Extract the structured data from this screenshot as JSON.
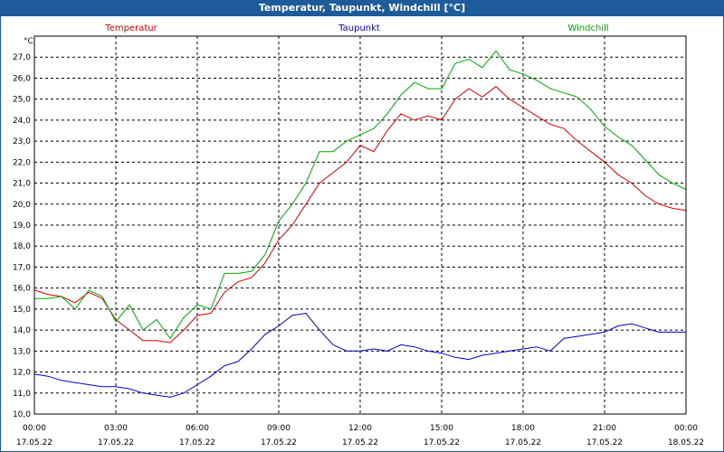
{
  "chart_data": {
    "type": "line",
    "title": "Temperatur, Taupunkt, Windchill [°C]",
    "ylabel": "°C",
    "xlabel": "",
    "ylim": [
      10.0,
      28.0
    ],
    "xlim": [
      0,
      24
    ],
    "grid": true,
    "legend_position": "top",
    "y_ticks": [
      "10,0",
      "11,0",
      "12,0",
      "13,0",
      "14,0",
      "15,0",
      "16,0",
      "17,0",
      "18,0",
      "19,0",
      "20,0",
      "21,0",
      "22,0",
      "23,0",
      "24,0",
      "25,0",
      "26,0",
      "27,0"
    ],
    "x_ticks": [
      {
        "time": "00:00",
        "date": "17.05.22"
      },
      {
        "time": "03:00",
        "date": "17.05.22"
      },
      {
        "time": "06:00",
        "date": "17.05.22"
      },
      {
        "time": "09:00",
        "date": "17.05.22"
      },
      {
        "time": "12:00",
        "date": "17.05.22"
      },
      {
        "time": "15:00",
        "date": "17.05.22"
      },
      {
        "time": "18:00",
        "date": "17.05.22"
      },
      {
        "time": "21:00",
        "date": "17.05.22"
      },
      {
        "time": "00:00",
        "date": "18.05.22"
      }
    ],
    "series": [
      {
        "name": "Temperatur",
        "color": "#e00000",
        "x": [
          0,
          0.5,
          1,
          1.5,
          2,
          2.5,
          3,
          3.5,
          4,
          4.5,
          5,
          5.5,
          6,
          6.5,
          7,
          7.5,
          8,
          8.5,
          9,
          9.5,
          10,
          10.5,
          11,
          11.5,
          12,
          12.5,
          13,
          13.5,
          14,
          14.5,
          15,
          15.5,
          16,
          16.5,
          17,
          17.5,
          18,
          18.5,
          19,
          19.5,
          20,
          20.5,
          21,
          21.5,
          22,
          22.5,
          23,
          23.5,
          24
        ],
        "values": [
          15.9,
          15.7,
          15.6,
          15.3,
          15.8,
          15.5,
          14.5,
          14.0,
          13.5,
          13.5,
          13.4,
          14.0,
          14.7,
          14.8,
          15.8,
          16.3,
          16.5,
          17.2,
          18.3,
          19.0,
          20.0,
          21.0,
          21.5,
          22.0,
          22.8,
          22.5,
          23.5,
          24.3,
          24.0,
          24.2,
          24.0,
          25.0,
          25.5,
          25.1,
          25.6,
          25.0,
          24.6,
          24.2,
          23.8,
          23.6,
          23.0,
          22.5,
          22.0,
          21.4,
          21.0,
          20.4,
          20.0,
          19.8,
          19.7
        ]
      },
      {
        "name": "Taupunkt",
        "color": "#0000cc",
        "x": [
          0,
          0.5,
          1,
          1.5,
          2,
          2.5,
          3,
          3.5,
          4,
          4.5,
          5,
          5.5,
          6,
          6.5,
          7,
          7.5,
          8,
          8.5,
          9,
          9.5,
          10,
          10.5,
          11,
          11.5,
          12,
          12.5,
          13,
          13.5,
          14,
          14.5,
          15,
          15.5,
          16,
          16.5,
          17,
          17.5,
          18,
          18.5,
          19,
          19.5,
          20,
          20.5,
          21,
          21.5,
          22,
          22.5,
          23,
          23.5,
          24
        ],
        "values": [
          11.9,
          11.8,
          11.6,
          11.5,
          11.4,
          11.3,
          11.3,
          11.2,
          11.0,
          10.9,
          10.8,
          11.0,
          11.4,
          11.8,
          12.3,
          12.5,
          13.1,
          13.8,
          14.2,
          14.7,
          14.8,
          14.0,
          13.3,
          13.0,
          13.0,
          13.1,
          13.0,
          13.3,
          13.2,
          13.0,
          12.9,
          12.7,
          12.6,
          12.8,
          12.9,
          13.0,
          13.1,
          13.2,
          13.0,
          13.6,
          13.7,
          13.8,
          13.9,
          14.2,
          14.3,
          14.1,
          13.9,
          13.9,
          13.9
        ]
      },
      {
        "name": "Windchill",
        "color": "#00aa00",
        "x": [
          0,
          0.5,
          1,
          1.5,
          2,
          2.5,
          3,
          3.5,
          4,
          4.5,
          5,
          5.5,
          6,
          6.5,
          7,
          7.5,
          8,
          8.5,
          9,
          9.5,
          10,
          10.5,
          11,
          11.5,
          12,
          12.5,
          13,
          13.5,
          14,
          14.5,
          15,
          15.5,
          16,
          16.5,
          17,
          17.5,
          18,
          18.5,
          19,
          19.5,
          20,
          20.5,
          21,
          21.5,
          22,
          22.5,
          23,
          23.5,
          24
        ],
        "values": [
          15.5,
          15.5,
          15.6,
          15.0,
          15.9,
          15.6,
          14.4,
          15.2,
          14.0,
          14.5,
          13.6,
          14.6,
          15.2,
          15.0,
          16.7,
          16.7,
          16.8,
          17.6,
          19.2,
          20.0,
          21.0,
          22.5,
          22.5,
          23.0,
          23.3,
          23.6,
          24.3,
          25.2,
          25.8,
          25.5,
          25.5,
          26.7,
          26.9,
          26.5,
          27.3,
          26.4,
          26.2,
          25.9,
          25.5,
          25.3,
          25.1,
          24.5,
          23.7,
          23.2,
          22.8,
          22.1,
          21.4,
          21.0,
          20.7
        ]
      }
    ]
  }
}
